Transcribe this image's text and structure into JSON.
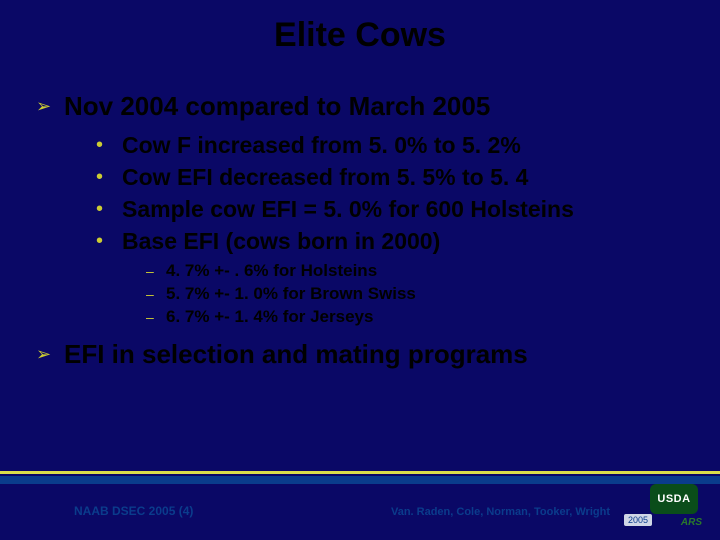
{
  "title": "Elite Cows",
  "background_color": "#0a0866",
  "bullet_color": "#cccc33",
  "text_color": "#000000",
  "accent_line_yellow": "#dbe04a",
  "accent_line_blue": "#0a3c8c",
  "typography": {
    "family": "Arial",
    "title_size_pt": 34,
    "lvl1_size_pt": 26,
    "lvl2_size_pt": 23,
    "lvl3_size_pt": 17,
    "footer_size_pt": 12
  },
  "bullets": {
    "lvl1_glyph": "➢",
    "lvl2_glyph": "•",
    "lvl3_glyph": "–"
  },
  "items": [
    {
      "text": "Nov 2004 compared to March 2005",
      "sub": [
        {
          "text": "Cow F increased from 5. 0% to 5. 2%"
        },
        {
          "text": "Cow EFI decreased from 5. 5% to 5. 4"
        },
        {
          "text": "Sample cow EFI = 5. 0% for 600 Holsteins"
        },
        {
          "text": "Base EFI (cows born in 2000)",
          "sub": [
            {
              "text": "4. 7% +- . 6% for Holsteins"
            },
            {
              "text": "5. 7% +- 1. 0% for Brown Swiss"
            },
            {
              "text": "6. 7% +- 1. 4% for Jerseys"
            }
          ]
        }
      ]
    },
    {
      "text": "EFI in selection and mating programs"
    }
  ],
  "footer": {
    "left": "NAAB DSEC 2005 (4)",
    "right": "Van. Raden, Cole, Norman, Tooker, Wright",
    "logo_text": "USDA",
    "year": "2005",
    "ars": "ARS"
  }
}
